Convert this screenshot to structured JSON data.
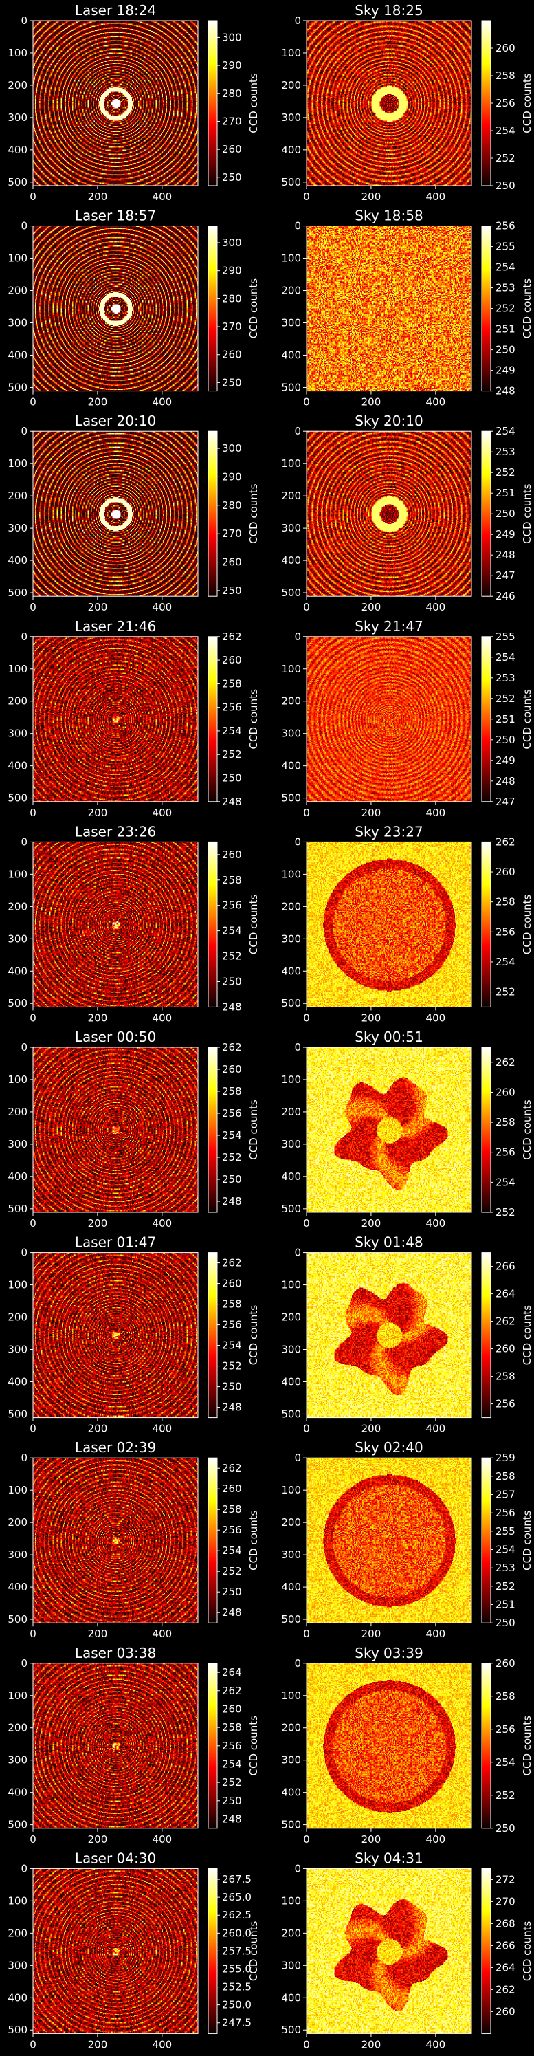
{
  "figure": {
    "background": "#000000",
    "colormap": "hot",
    "colorbar_label": "CCD counts",
    "x_ticks": [
      0,
      200,
      400
    ],
    "y_ticks": [
      0,
      100,
      200,
      300,
      400,
      500
    ],
    "axis_range": [
      0,
      511
    ]
  },
  "chart_data": [
    {
      "type": "heatmap",
      "title": "Laser 18:24",
      "pattern": "laser",
      "clim": [
        247,
        306
      ],
      "cbar_ticks": [
        "250",
        "260",
        "270",
        "280",
        "290",
        "300"
      ]
    },
    {
      "type": "heatmap",
      "title": "Sky 18:25",
      "pattern": "sky_rings",
      "clim": [
        250,
        262
      ],
      "cbar_ticks": [
        "250",
        "252",
        "254",
        "256",
        "258",
        "260"
      ]
    },
    {
      "type": "heatmap",
      "title": "Laser 18:57",
      "pattern": "laser",
      "clim": [
        247,
        306
      ],
      "cbar_ticks": [
        "250",
        "260",
        "270",
        "280",
        "290",
        "300"
      ]
    },
    {
      "type": "heatmap",
      "title": "Sky 18:58",
      "pattern": "noise",
      "clim": [
        248,
        256
      ],
      "cbar_ticks": [
        "248",
        "249",
        "250",
        "251",
        "252",
        "253",
        "254",
        "255",
        "256"
      ]
    },
    {
      "type": "heatmap",
      "title": "Laser 20:10",
      "pattern": "laser",
      "clim": [
        248,
        306
      ],
      "cbar_ticks": [
        "250",
        "260",
        "270",
        "280",
        "290",
        "300"
      ]
    },
    {
      "type": "heatmap",
      "title": "Sky 20:10",
      "pattern": "sky_rings",
      "clim": [
        246,
        254
      ],
      "cbar_ticks": [
        "246",
        "247",
        "248",
        "249",
        "250",
        "251",
        "252",
        "253",
        "254"
      ]
    },
    {
      "type": "heatmap",
      "title": "Laser 21:46",
      "pattern": "laser_dim",
      "clim": [
        248,
        262
      ],
      "cbar_ticks": [
        "248",
        "250",
        "252",
        "254",
        "256",
        "258",
        "260",
        "262"
      ]
    },
    {
      "type": "heatmap",
      "title": "Sky 21:47",
      "pattern": "sky_faint",
      "clim": [
        247,
        255
      ],
      "cbar_ticks": [
        "247",
        "248",
        "249",
        "250",
        "251",
        "252",
        "253",
        "254",
        "255"
      ]
    },
    {
      "type": "heatmap",
      "title": "Laser 23:26",
      "pattern": "laser_dim",
      "clim": [
        248,
        261
      ],
      "cbar_ticks": [
        "248",
        "250",
        "252",
        "254",
        "256",
        "258",
        "260"
      ]
    },
    {
      "type": "heatmap",
      "title": "Sky 23:27",
      "pattern": "sky_disk",
      "clim": [
        251,
        262
      ],
      "cbar_ticks": [
        "252",
        "254",
        "256",
        "258",
        "260",
        "262"
      ]
    },
    {
      "type": "heatmap",
      "title": "Laser 00:50",
      "pattern": "laser_dim",
      "clim": [
        247,
        262
      ],
      "cbar_ticks": [
        "248",
        "250",
        "252",
        "254",
        "256",
        "258",
        "260",
        "262"
      ]
    },
    {
      "type": "heatmap",
      "title": "Sky 00:51",
      "pattern": "sky_blob",
      "clim": [
        252,
        263
      ],
      "cbar_ticks": [
        "252",
        "254",
        "256",
        "258",
        "260",
        "262"
      ]
    },
    {
      "type": "heatmap",
      "title": "Laser 01:47",
      "pattern": "laser_dim",
      "clim": [
        247,
        263
      ],
      "cbar_ticks": [
        "248",
        "250",
        "252",
        "254",
        "256",
        "258",
        "260",
        "262"
      ]
    },
    {
      "type": "heatmap",
      "title": "Sky 01:48",
      "pattern": "sky_blob",
      "clim": [
        255,
        267
      ],
      "cbar_ticks": [
        "256",
        "258",
        "260",
        "262",
        "264",
        "266"
      ]
    },
    {
      "type": "heatmap",
      "title": "Laser 02:39",
      "pattern": "laser_dim",
      "clim": [
        247,
        263
      ],
      "cbar_ticks": [
        "248",
        "250",
        "252",
        "254",
        "256",
        "258",
        "260",
        "262"
      ]
    },
    {
      "type": "heatmap",
      "title": "Sky 02:40",
      "pattern": "sky_disk",
      "clim": [
        250,
        259
      ],
      "cbar_ticks": [
        "250",
        "251",
        "252",
        "253",
        "254",
        "255",
        "256",
        "257",
        "258",
        "259"
      ]
    },
    {
      "type": "heatmap",
      "title": "Laser 03:38",
      "pattern": "laser_dim",
      "clim": [
        247,
        265
      ],
      "cbar_ticks": [
        "248",
        "250",
        "252",
        "254",
        "256",
        "258",
        "260",
        "262",
        "264"
      ]
    },
    {
      "type": "heatmap",
      "title": "Sky 03:39",
      "pattern": "sky_disk",
      "clim": [
        250,
        260
      ],
      "cbar_ticks": [
        "250",
        "252",
        "254",
        "256",
        "258",
        "260"
      ]
    },
    {
      "type": "heatmap",
      "title": "Laser 04:30",
      "pattern": "laser_dim",
      "clim": [
        246,
        269
      ],
      "cbar_ticks": [
        "247.5",
        "250.0",
        "252.5",
        "255.0",
        "257.5",
        "260.0",
        "262.5",
        "265.0",
        "267.5"
      ]
    },
    {
      "type": "heatmap",
      "title": "Sky 04:31",
      "pattern": "sky_blob",
      "clim": [
        258,
        273
      ],
      "cbar_ticks": [
        "260",
        "262",
        "264",
        "266",
        "268",
        "270",
        "272"
      ]
    }
  ]
}
